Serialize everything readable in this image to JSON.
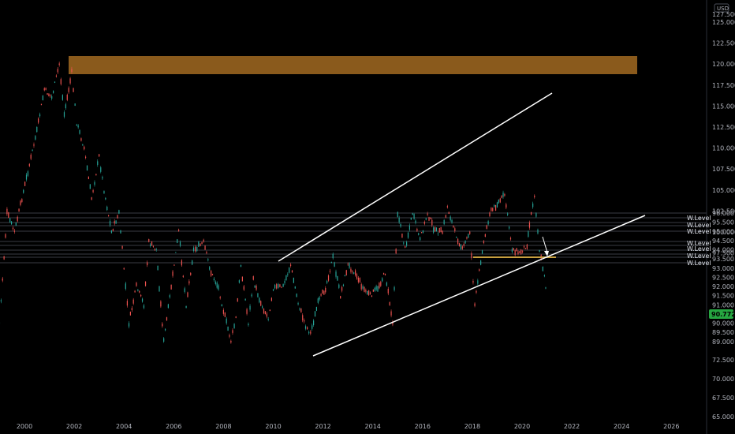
{
  "chart_data": {
    "type": "candlestick",
    "currency": "USD",
    "last_price": "90.772",
    "colors": {
      "up": "#26a69a",
      "down": "#ef5350",
      "zone": "#8a5a1c",
      "level_line": "#c8a040",
      "trendline": "#ffffff",
      "badge": "#26a641"
    },
    "x_ticks": [
      "2000",
      "2002",
      "2004",
      "2006",
      "2008",
      "2010",
      "2012",
      "2014",
      "2016",
      "2018",
      "2020",
      "2022",
      "2024",
      "2026"
    ],
    "y_ticks_upper": [
      "127.500",
      "125.000",
      "122.500",
      "120.000",
      "117.500",
      "115.000",
      "112.500",
      "110.000",
      "107.500",
      "105.000",
      "102.500",
      "100.000",
      "97.500"
    ],
    "y_ticks_levels": [
      "96.000",
      "95.500",
      "95.000",
      "94.500",
      "94.000",
      "93.500",
      "93.000",
      "92.500",
      "92.000",
      "91.500",
      "91.000",
      "90.500",
      "90.000",
      "89.500",
      "89.000"
    ],
    "y_ticks_lower": [
      "72.500",
      "70.000",
      "67.500",
      "65.000"
    ],
    "level_labels": [
      "W.Level",
      "W.Level",
      "W.Level",
      "W.Level",
      "W.Level",
      "W.Level",
      "W.Level",
      "W.Level"
    ],
    "price_path": [
      [
        1999.0,
        90
      ],
      [
        1999.3,
        96
      ],
      [
        1999.6,
        100
      ],
      [
        1999.9,
        104
      ],
      [
        2000.2,
        108
      ],
      [
        2000.5,
        112
      ],
      [
        2000.8,
        117
      ],
      [
        2001.1,
        116
      ],
      [
        2001.4,
        120
      ],
      [
        2001.6,
        114
      ],
      [
        2001.9,
        119
      ],
      [
        2002.1,
        113
      ],
      [
        2002.4,
        110
      ],
      [
        2002.7,
        104
      ],
      [
        2003.0,
        109
      ],
      [
        2003.2,
        105
      ],
      [
        2003.5,
        100
      ],
      [
        2003.8,
        96
      ],
      [
        2004.0,
        93
      ],
      [
        2004.2,
        90
      ],
      [
        2004.5,
        92
      ],
      [
        2004.8,
        91
      ],
      [
        2005.0,
        88
      ],
      [
        2005.3,
        87
      ],
      [
        2005.6,
        89
      ],
      [
        2005.9,
        92
      ],
      [
        2006.2,
        95
      ],
      [
        2006.5,
        91
      ],
      [
        2006.8,
        87
      ],
      [
        2007.2,
        88
      ],
      [
        2007.5,
        84
      ],
      [
        2007.8,
        82
      ],
      [
        2008.0,
        79
      ],
      [
        2008.3,
        75
      ],
      [
        2008.5,
        78
      ],
      [
        2008.7,
        85
      ],
      [
        2009.0,
        90
      ],
      [
        2009.2,
        83
      ],
      [
        2009.5,
        80
      ],
      [
        2009.8,
        78
      ],
      [
        2010.0,
        82
      ],
      [
        2010.4,
        92
      ],
      [
        2010.7,
        85
      ],
      [
        2011.0,
        80
      ],
      [
        2011.3,
        77
      ],
      [
        2011.5,
        76
      ],
      [
        2011.8,
        80
      ],
      [
        2012.1,
        82
      ],
      [
        2012.4,
        86
      ],
      [
        2012.7,
        81
      ],
      [
        2013.0,
        85
      ],
      [
        2013.3,
        84
      ],
      [
        2013.6,
        82
      ],
      [
        2013.9,
        81
      ],
      [
        2014.2,
        82
      ],
      [
        2014.5,
        84
      ],
      [
        2014.8,
        90
      ],
      [
        2015.0,
        96
      ],
      [
        2015.3,
        98
      ],
      [
        2015.6,
        96
      ],
      [
        2015.9,
        99
      ],
      [
        2016.2,
        96
      ],
      [
        2016.5,
        95
      ],
      [
        2016.8,
        100
      ],
      [
        2017.0,
        103
      ],
      [
        2017.3,
        100
      ],
      [
        2017.6,
        94
      ],
      [
        2017.9,
        95
      ],
      [
        2018.1,
        91
      ],
      [
        2018.4,
        94
      ],
      [
        2018.7,
        96
      ],
      [
        2019.0,
        96.5
      ],
      [
        2019.3,
        97
      ],
      [
        2019.6,
        98
      ],
      [
        2019.9,
        97.5
      ],
      [
        2020.2,
        98.5
      ],
      [
        2020.3,
        101
      ],
      [
        2020.5,
        97
      ],
      [
        2020.7,
        94
      ],
      [
        2020.9,
        92.5
      ],
      [
        2021.0,
        91.5
      ]
    ]
  }
}
